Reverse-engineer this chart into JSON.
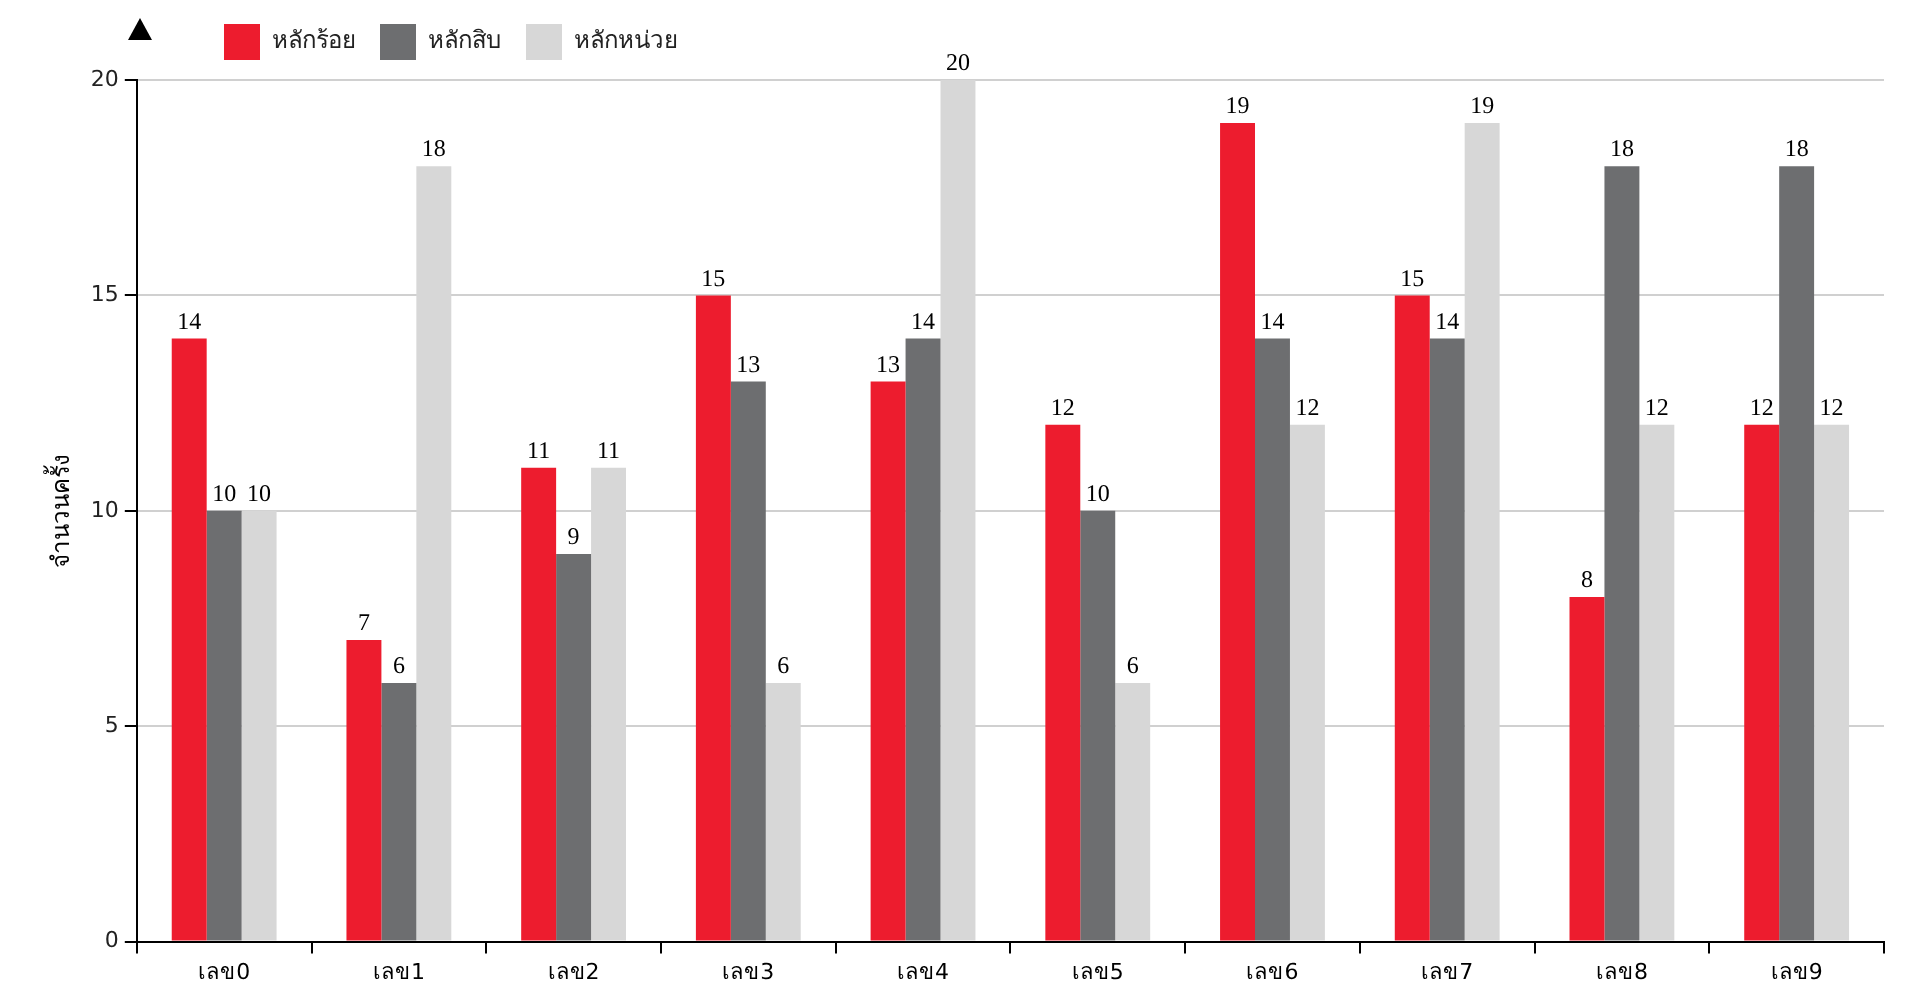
{
  "chart_data": {
    "type": "bar",
    "ylabel": "จำนวนครั้ง",
    "categories": [
      "เลข0",
      "เลข1",
      "เลข2",
      "เลข3",
      "เลข4",
      "เลข5",
      "เลข6",
      "เลข7",
      "เลข8",
      "เลข9"
    ],
    "series": [
      {
        "name": "หลักร้อย",
        "color": "#ed1c2e",
        "values": [
          14,
          7,
          11,
          15,
          13,
          12,
          19,
          15,
          8,
          12
        ]
      },
      {
        "name": "หลักสิบ",
        "color": "#6d6e70",
        "values": [
          10,
          6,
          9,
          13,
          14,
          10,
          14,
          14,
          18,
          18
        ]
      },
      {
        "name": "หลักหน่วย",
        "color": "#d7d7d7",
        "values": [
          10,
          18,
          11,
          6,
          20,
          6,
          12,
          19,
          12,
          12
        ]
      }
    ],
    "ylim": [
      0,
      20
    ],
    "yticks": [
      0,
      5,
      10,
      15,
      20
    ],
    "grid": "y",
    "legend": "top left",
    "data_labels": true
  }
}
